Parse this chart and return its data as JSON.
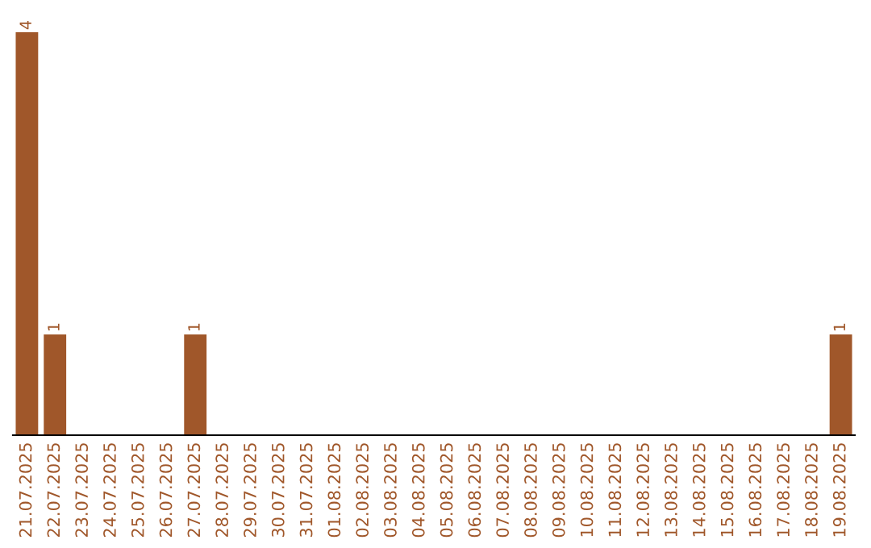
{
  "chart_data": {
    "type": "bar",
    "categories": [
      "21.07.2025",
      "22.07.2025",
      "23.07.2025",
      "24.07.2025",
      "25.07.2025",
      "26.07.2025",
      "27.07.2025",
      "28.07.2025",
      "29.07.2025",
      "30.07.2025",
      "31.07.2025",
      "01.08.2025",
      "02.08.2025",
      "03.08.2025",
      "04.08.2025",
      "05.08.2025",
      "06.08.2025",
      "07.08.2025",
      "08.08.2025",
      "09.08.2025",
      "10.08.2025",
      "11.08.2025",
      "12.08.2025",
      "13.08.2025",
      "14.08.2025",
      "15.08.2025",
      "16.08.2025",
      "17.08.2025",
      "18.08.2025",
      "19.08.2025"
    ],
    "values": [
      4,
      1,
      0,
      0,
      0,
      0,
      1,
      0,
      0,
      0,
      0,
      0,
      0,
      0,
      0,
      0,
      0,
      0,
      0,
      0,
      0,
      0,
      0,
      0,
      0,
      0,
      0,
      0,
      0,
      1
    ],
    "value_labels": [
      "4",
      "1",
      null,
      null,
      null,
      null,
      "1",
      null,
      null,
      null,
      null,
      null,
      null,
      null,
      null,
      null,
      null,
      null,
      null,
      null,
      null,
      null,
      null,
      null,
      null,
      null,
      null,
      null,
      null,
      "1"
    ],
    "color": "#a0572a",
    "grid": false,
    "legend": false
  }
}
